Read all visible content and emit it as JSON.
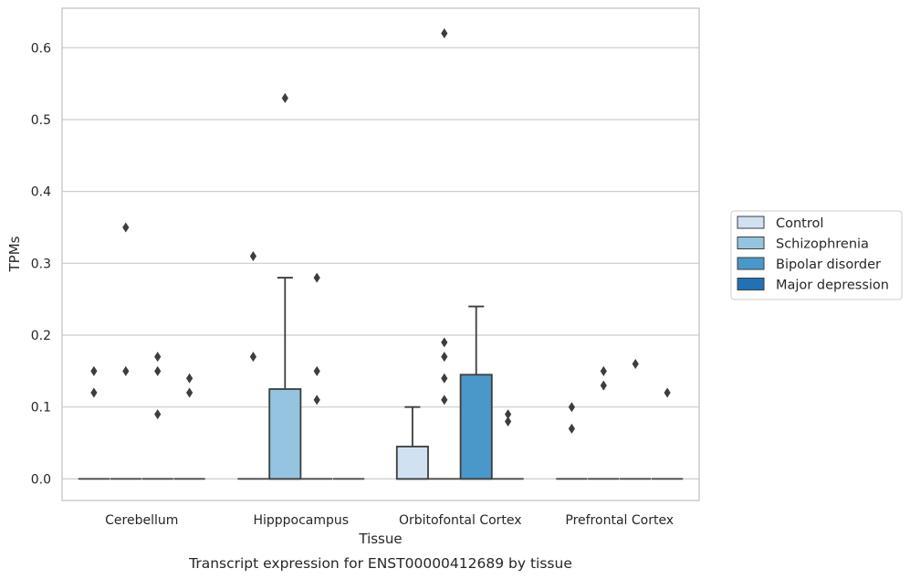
{
  "chart_data": {
    "type": "box",
    "title": "",
    "caption": "Transcript expression for ENST00000412689 by tissue",
    "xlabel": "Tissue",
    "ylabel": "TPMs",
    "ylim": [
      -0.03,
      0.655
    ],
    "yticks": [
      0.0,
      0.1,
      0.2,
      0.3,
      0.4,
      0.5,
      0.6
    ],
    "ytick_labels": [
      "0.0",
      "0.1",
      "0.2",
      "0.3",
      "0.4",
      "0.5",
      "0.6"
    ],
    "grid": true,
    "legend_position": "right",
    "categories": [
      "Cerebellum",
      "Hipppocampus",
      "Orbitofontal Cortex",
      "Prefrontal Cortex"
    ],
    "series": [
      {
        "name": "Control",
        "color": "#d0e1f2",
        "boxes": [
          {
            "q1": 0,
            "median": 0,
            "q3": 0,
            "whisker_low": 0,
            "whisker_high": 0,
            "outliers": [
              0.12,
              0.15
            ]
          },
          {
            "q1": 0,
            "median": 0,
            "q3": 0,
            "whisker_low": 0,
            "whisker_high": 0,
            "outliers": [
              0.17,
              0.31
            ]
          },
          {
            "q1": 0,
            "median": 0,
            "q3": 0.045,
            "whisker_low": 0,
            "whisker_high": 0.1,
            "outliers": []
          },
          {
            "q1": 0,
            "median": 0,
            "q3": 0,
            "whisker_low": 0,
            "whisker_high": 0,
            "outliers": [
              0.07,
              0.1
            ]
          }
        ]
      },
      {
        "name": "Schizophrenia",
        "color": "#94c4df",
        "boxes": [
          {
            "q1": 0,
            "median": 0,
            "q3": 0,
            "whisker_low": 0,
            "whisker_high": 0,
            "outliers": [
              0.15,
              0.35
            ]
          },
          {
            "q1": 0,
            "median": 0,
            "q3": 0.125,
            "whisker_low": 0,
            "whisker_high": 0.28,
            "outliers": [
              0.53
            ]
          },
          {
            "q1": 0,
            "median": 0,
            "q3": 0,
            "whisker_low": 0,
            "whisker_high": 0,
            "outliers": [
              0.11,
              0.14,
              0.17,
              0.19,
              0.62
            ]
          },
          {
            "q1": 0,
            "median": 0,
            "q3": 0,
            "whisker_low": 0,
            "whisker_high": 0,
            "outliers": [
              0.13,
              0.15
            ]
          }
        ]
      },
      {
        "name": "Bipolar disorder",
        "color": "#4a98c9",
        "boxes": [
          {
            "q1": 0,
            "median": 0,
            "q3": 0,
            "whisker_low": 0,
            "whisker_high": 0,
            "outliers": [
              0.09,
              0.15,
              0.17
            ]
          },
          {
            "q1": 0,
            "median": 0,
            "q3": 0,
            "whisker_low": 0,
            "whisker_high": 0,
            "outliers": [
              0.11,
              0.15,
              0.28
            ]
          },
          {
            "q1": 0,
            "median": 0,
            "q3": 0.145,
            "whisker_low": 0,
            "whisker_high": 0.24,
            "outliers": []
          },
          {
            "q1": 0,
            "median": 0,
            "q3": 0,
            "whisker_low": 0,
            "whisker_high": 0,
            "outliers": [
              0.16
            ]
          }
        ]
      },
      {
        "name": "Major depression",
        "color": "#2171b5",
        "boxes": [
          {
            "q1": 0,
            "median": 0,
            "q3": 0,
            "whisker_low": 0,
            "whisker_high": 0,
            "outliers": [
              0.12,
              0.14
            ]
          },
          {
            "q1": 0,
            "median": 0,
            "q3": 0,
            "whisker_low": 0,
            "whisker_high": 0,
            "outliers": []
          },
          {
            "q1": 0,
            "median": 0,
            "q3": 0,
            "whisker_low": 0,
            "whisker_high": 0,
            "outliers": [
              0.08,
              0.09
            ]
          },
          {
            "q1": 0,
            "median": 0,
            "q3": 0,
            "whisker_low": 0,
            "whisker_high": 0,
            "outliers": [
              0.12
            ]
          }
        ]
      }
    ]
  }
}
